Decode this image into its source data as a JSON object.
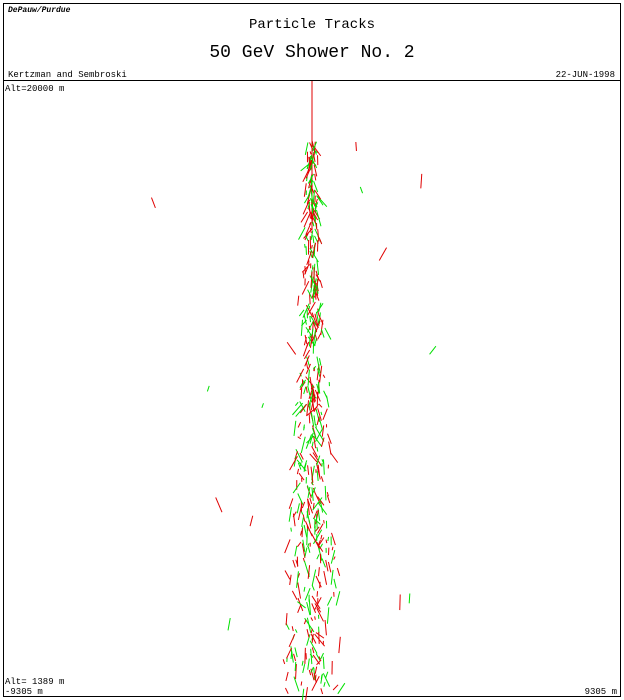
{
  "header": {
    "institution": "DePauw/Purdue",
    "title": "Particle Tracks",
    "subtitle": "50 GeV Shower No. 2",
    "authors": "Kertzman and Sembroski",
    "date": "22-JUN-1998"
  },
  "plot": {
    "top_label": "Alt=20000 m",
    "bottom_label": "Alt= 1389 m",
    "x_min_label": "-9305 m",
    "x_max_label": "9305 m"
  }
}
